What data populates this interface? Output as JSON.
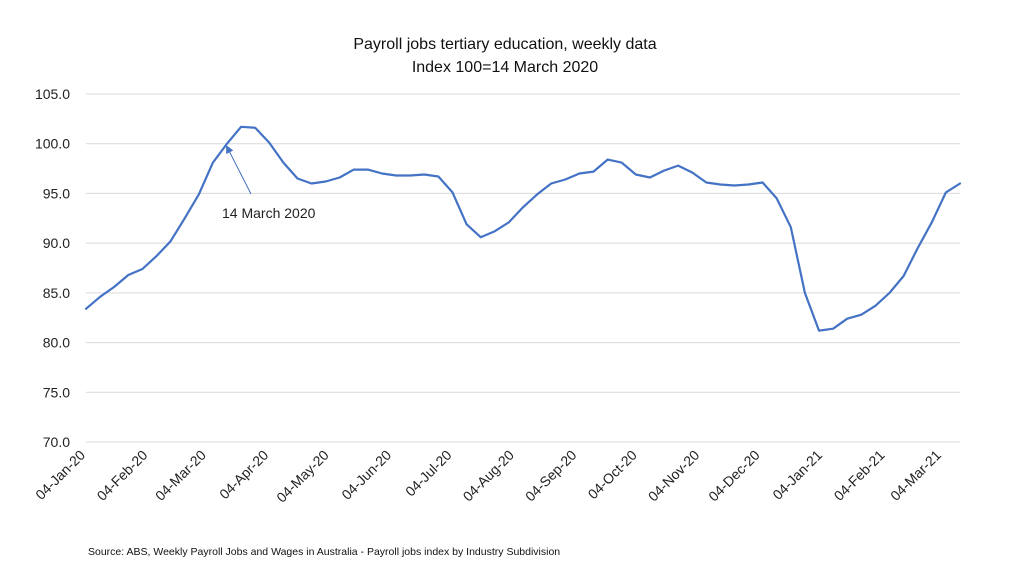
{
  "chart_data": {
    "type": "line",
    "title": "Payroll jobs tertiary education, weekly data",
    "subtitle": "Index 100=14 March 2020",
    "xlabel": "",
    "ylabel": "",
    "ylim": [
      70,
      105
    ],
    "yticks": [
      "105.0",
      "100.0",
      "95.0",
      "90.0",
      "85.0",
      "80.0",
      "75.0",
      "70.0"
    ],
    "grid": true,
    "legend": "none",
    "line_color": "#4472C4",
    "x_tick_labels": [
      "04-Jan-20",
      "04-Feb-20",
      "04-Mar-20",
      "04-Apr-20",
      "04-May-20",
      "04-Jun-20",
      "04-Jul-20",
      "04-Aug-20",
      "04-Sep-20",
      "04-Oct-20",
      "04-Nov-20",
      "04-Dec-20",
      "04-Jan-21",
      "04-Feb-21",
      "04-Mar-21"
    ],
    "x_tick_dates": [
      "2020-01-04",
      "2020-02-04",
      "2020-03-04",
      "2020-04-04",
      "2020-05-04",
      "2020-06-04",
      "2020-07-04",
      "2020-08-04",
      "2020-09-04",
      "2020-10-04",
      "2020-11-04",
      "2020-12-04",
      "2021-01-04",
      "2021-02-04",
      "2021-03-04"
    ],
    "series": [
      {
        "name": "",
        "points": [
          [
            "2020-01-04",
            83.4
          ],
          [
            "2020-01-11",
            84.6
          ],
          [
            "2020-01-18",
            85.6
          ],
          [
            "2020-01-25",
            86.8
          ],
          [
            "2020-02-01",
            87.4
          ],
          [
            "2020-02-08",
            88.7
          ],
          [
            "2020-02-15",
            90.2
          ],
          [
            "2020-02-22",
            92.5
          ],
          [
            "2020-02-29",
            94.9
          ],
          [
            "2020-03-07",
            98.1
          ],
          [
            "2020-03-14",
            100.0
          ],
          [
            "2020-03-21",
            101.7
          ],
          [
            "2020-03-28",
            101.6
          ],
          [
            "2020-04-04",
            100.1
          ],
          [
            "2020-04-11",
            98.1
          ],
          [
            "2020-04-18",
            96.5
          ],
          [
            "2020-04-25",
            96.0
          ],
          [
            "2020-05-02",
            96.2
          ],
          [
            "2020-05-09",
            96.6
          ],
          [
            "2020-05-16",
            97.4
          ],
          [
            "2020-05-23",
            97.4
          ],
          [
            "2020-05-30",
            97.0
          ],
          [
            "2020-06-06",
            96.8
          ],
          [
            "2020-06-13",
            96.8
          ],
          [
            "2020-06-20",
            96.9
          ],
          [
            "2020-06-27",
            96.7
          ],
          [
            "2020-07-04",
            95.1
          ],
          [
            "2020-07-11",
            91.9
          ],
          [
            "2020-07-18",
            90.6
          ],
          [
            "2020-07-25",
            91.2
          ],
          [
            "2020-08-01",
            92.1
          ],
          [
            "2020-08-08",
            93.6
          ],
          [
            "2020-08-15",
            94.9
          ],
          [
            "2020-08-22",
            96.0
          ],
          [
            "2020-08-29",
            96.4
          ],
          [
            "2020-09-05",
            97.0
          ],
          [
            "2020-09-12",
            97.2
          ],
          [
            "2020-09-19",
            98.4
          ],
          [
            "2020-09-26",
            98.1
          ],
          [
            "2020-10-03",
            96.9
          ],
          [
            "2020-10-10",
            96.6
          ],
          [
            "2020-10-17",
            97.3
          ],
          [
            "2020-10-24",
            97.8
          ],
          [
            "2020-10-31",
            97.1
          ],
          [
            "2020-11-07",
            96.1
          ],
          [
            "2020-11-14",
            95.9
          ],
          [
            "2020-11-21",
            95.8
          ],
          [
            "2020-11-28",
            95.9
          ],
          [
            "2020-12-05",
            96.1
          ],
          [
            "2020-12-12",
            94.5
          ],
          [
            "2020-12-19",
            91.6
          ],
          [
            "2020-12-26",
            85.0
          ],
          [
            "2021-01-02",
            81.2
          ],
          [
            "2021-01-09",
            81.4
          ],
          [
            "2021-01-16",
            82.4
          ],
          [
            "2021-01-23",
            82.8
          ],
          [
            "2021-01-30",
            83.7
          ],
          [
            "2021-02-06",
            85.0
          ],
          [
            "2021-02-13",
            86.7
          ],
          [
            "2021-02-20",
            89.5
          ],
          [
            "2021-02-27",
            92.1
          ],
          [
            "2021-03-06",
            95.1
          ],
          [
            "2021-03-13",
            96.0
          ]
        ]
      }
    ],
    "annotations": [
      {
        "text": "14 March 2020",
        "x": "2020-03-14",
        "y": 100.0
      }
    ],
    "source": "Source: ABS, Weekly Payroll Jobs and Wages in Australia - Payroll jobs index by Industry Subdivision"
  }
}
